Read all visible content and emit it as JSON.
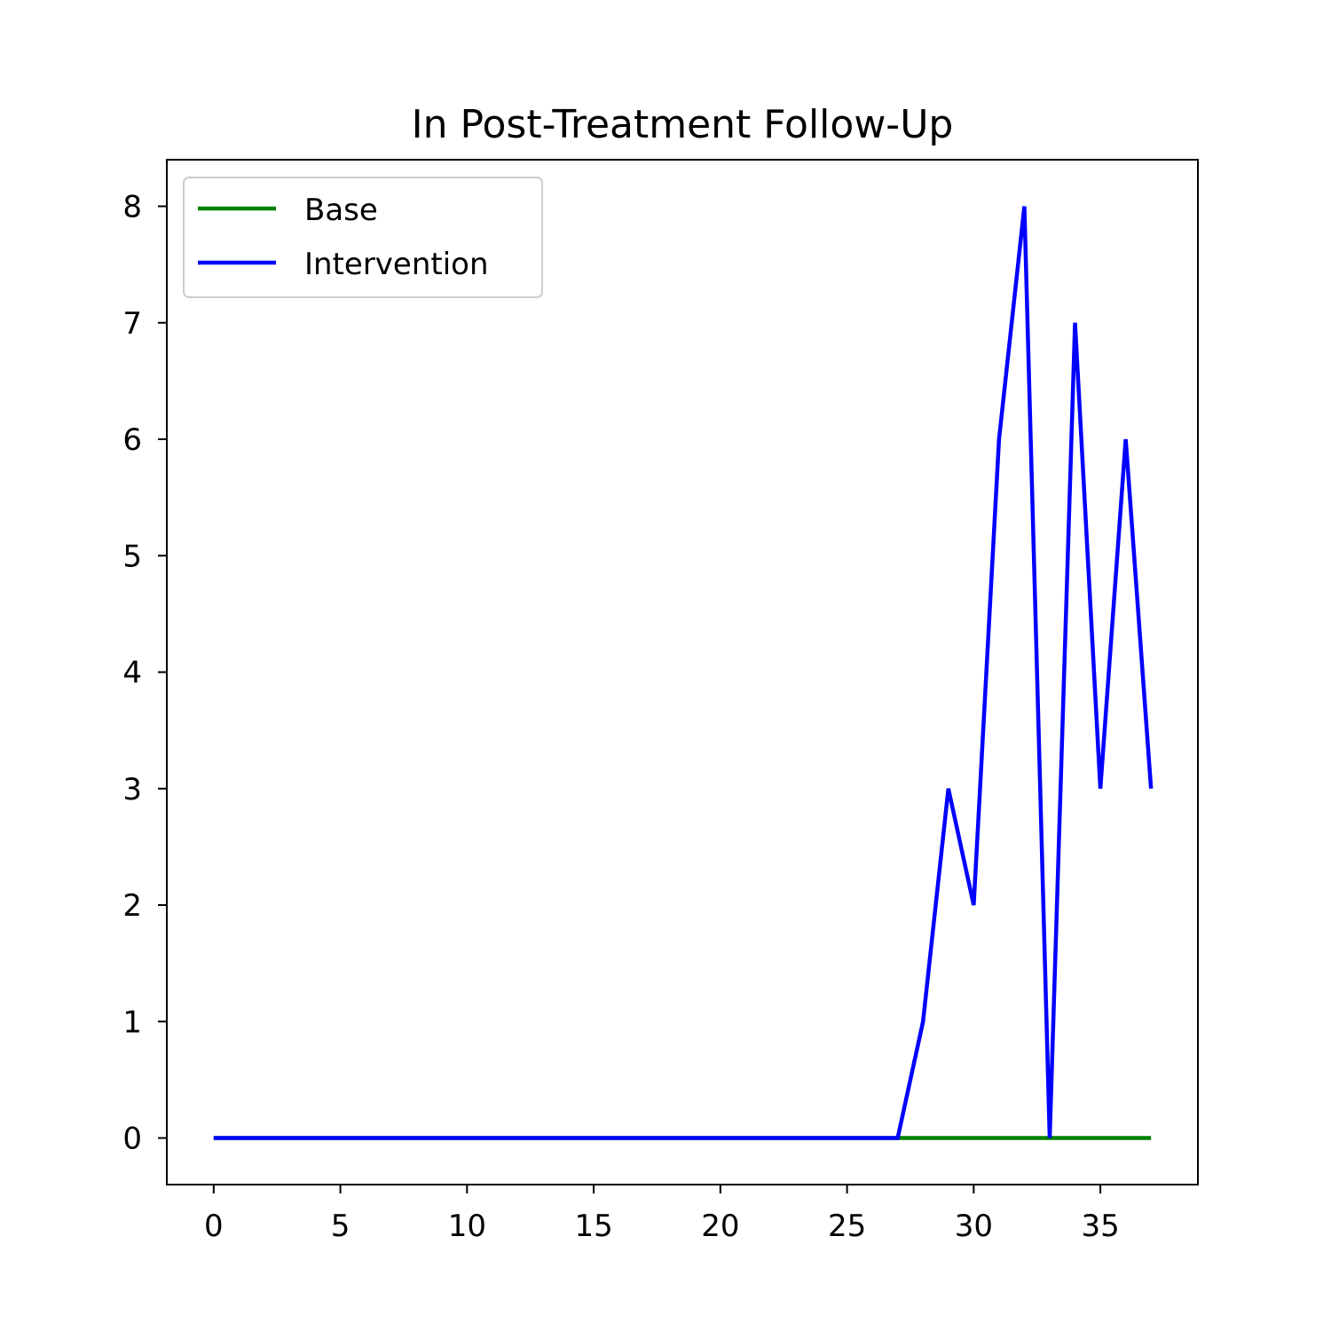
{
  "chart_data": {
    "type": "line",
    "title": "In Post-Treatment Follow-Up",
    "xlabel": "",
    "ylabel": "",
    "xlim": [
      -1.85,
      38.85
    ],
    "ylim": [
      -0.4,
      8.4
    ],
    "x_ticks": [
      0,
      5,
      10,
      15,
      20,
      25,
      30,
      35
    ],
    "y_ticks": [
      0,
      1,
      2,
      3,
      4,
      5,
      6,
      7,
      8
    ],
    "grid": false,
    "legend_position": "top-left",
    "x": [
      0,
      1,
      2,
      3,
      4,
      5,
      6,
      7,
      8,
      9,
      10,
      11,
      12,
      13,
      14,
      15,
      16,
      17,
      18,
      19,
      20,
      21,
      22,
      23,
      24,
      25,
      26,
      27,
      28,
      29,
      30,
      31,
      32,
      33,
      34,
      35,
      36,
      37
    ],
    "series": [
      {
        "name": "Base",
        "color": "#008000",
        "values": [
          0,
          0,
          0,
          0,
          0,
          0,
          0,
          0,
          0,
          0,
          0,
          0,
          0,
          0,
          0,
          0,
          0,
          0,
          0,
          0,
          0,
          0,
          0,
          0,
          0,
          0,
          0,
          0,
          0,
          0,
          0,
          0,
          0,
          0,
          0,
          0,
          0,
          0
        ]
      },
      {
        "name": "Intervention",
        "color": "#0000ff",
        "values": [
          0,
          0,
          0,
          0,
          0,
          0,
          0,
          0,
          0,
          0,
          0,
          0,
          0,
          0,
          0,
          0,
          0,
          0,
          0,
          0,
          0,
          0,
          0,
          0,
          0,
          0,
          0,
          0,
          1,
          3,
          2,
          6,
          8,
          0,
          7,
          3,
          6,
          3
        ]
      }
    ]
  }
}
